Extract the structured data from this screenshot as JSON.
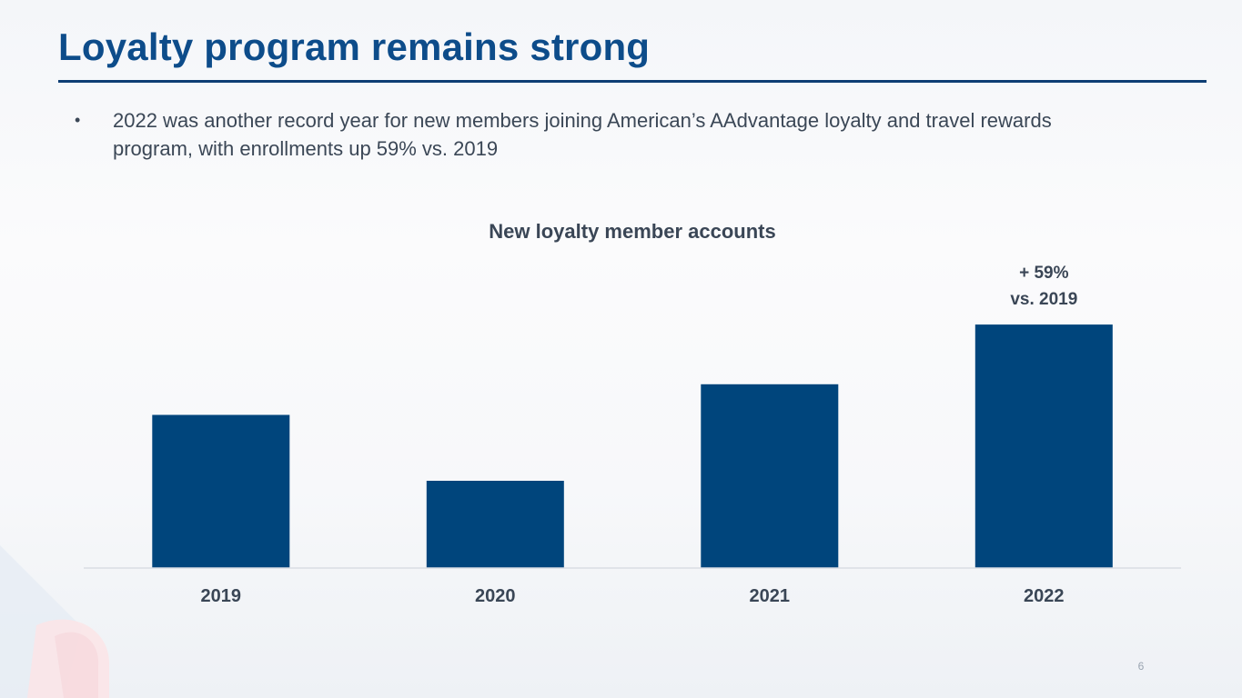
{
  "slide": {
    "title": "Loyalty program remains strong",
    "bullet": "2022 was another record year for new members joining American’s AAdvantage loyalty and travel rewards program, with enrollments up 59% vs. 2019",
    "page_number": "6"
  },
  "colors": {
    "title": "#0d4c8a",
    "bar": "#00457c",
    "rule": "#0d3e74"
  },
  "chart_data": {
    "type": "bar",
    "title": "New loyalty member accounts",
    "categories": [
      "2019",
      "2020",
      "2021",
      "2022"
    ],
    "values": [
      100,
      57,
      120,
      159
    ],
    "unit": "index, 2019 = 100",
    "annotation": {
      "category": "2022",
      "lines": [
        "+ 59%",
        "vs. 2019"
      ]
    },
    "ylim": [
      0,
      160
    ],
    "grid": false,
    "legend": "none",
    "axes_visible": {
      "x_baseline": true,
      "y_axis": false
    }
  }
}
